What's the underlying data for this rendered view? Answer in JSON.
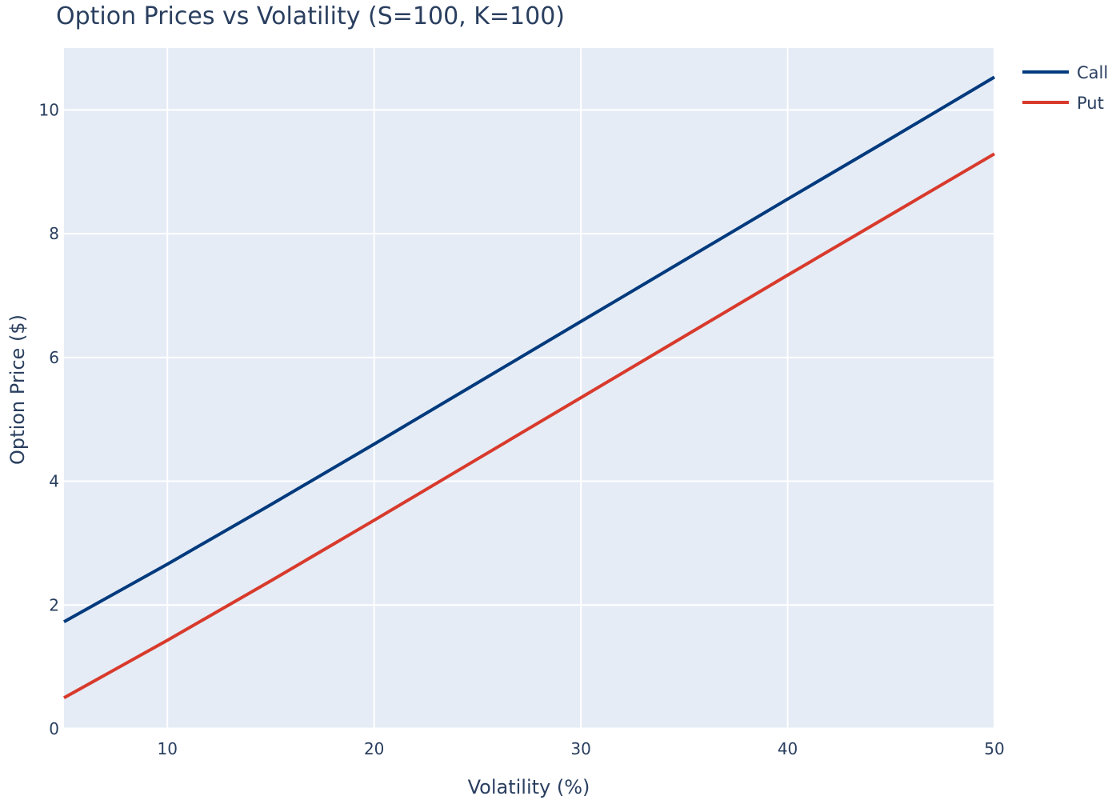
{
  "chart_data": {
    "type": "line",
    "title": "Option Prices vs Volatility (S=100, K=100)",
    "xlabel": "Volatility (%)",
    "ylabel": "Option Price ($)",
    "xlim": [
      5,
      50
    ],
    "ylim": [
      0,
      11
    ],
    "x_ticks": [
      10,
      20,
      30,
      40,
      50
    ],
    "y_ticks": [
      0,
      2,
      4,
      6,
      8,
      10
    ],
    "grid": true,
    "legend_position": "top-right",
    "series": [
      {
        "name": "Call",
        "color": "#003a7d",
        "x": [
          5,
          10,
          15,
          20,
          25,
          30,
          35,
          40,
          45,
          50
        ],
        "y": [
          1.73,
          2.66,
          3.62,
          4.6,
          5.59,
          6.58,
          7.57,
          8.56,
          9.54,
          10.53
        ]
      },
      {
        "name": "Put",
        "color": "#d83a2c",
        "x": [
          5,
          10,
          15,
          20,
          25,
          30,
          35,
          40,
          45,
          50
        ],
        "y": [
          0.5,
          1.43,
          2.39,
          3.37,
          4.36,
          5.35,
          6.34,
          7.33,
          8.31,
          9.29
        ]
      }
    ]
  },
  "colors": {
    "plot_background": "#e5ecf6",
    "grid": "#ffffff",
    "text": "#2a3f5f"
  }
}
